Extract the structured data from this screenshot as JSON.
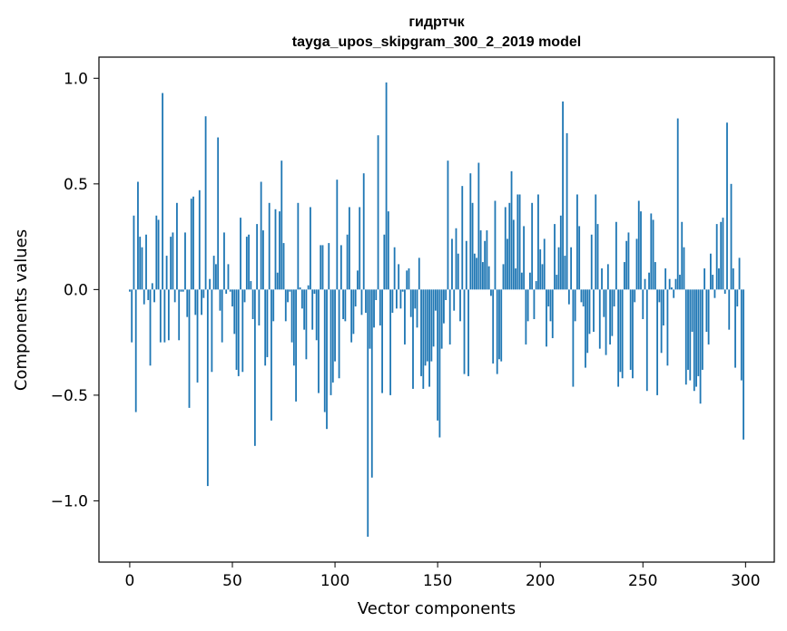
{
  "chart_data": {
    "type": "bar",
    "title": "гидртчк",
    "subtitle": "tayga_upos_skipgram_300_2_2019 model",
    "xlabel": "Vector components",
    "ylabel": "Components values",
    "xlim": [
      -15,
      314
    ],
    "ylim": [
      -1.29,
      1.1
    ],
    "xticks": [
      0,
      50,
      100,
      150,
      200,
      250,
      300
    ],
    "xtick_labels": [
      "0",
      "50",
      "100",
      "150",
      "200",
      "250",
      "300"
    ],
    "yticks": [
      -1.0,
      -0.5,
      0.0,
      0.5,
      1.0
    ],
    "ytick_labels": [
      "−1.0",
      "−0.5",
      "0.0",
      "0.5",
      "1.0"
    ],
    "bar_color": "#1f77b4",
    "grid": false,
    "legend": "none",
    "values": [
      -0.01,
      -0.25,
      0.35,
      -0.58,
      0.51,
      0.25,
      0.2,
      -0.07,
      0.26,
      -0.05,
      -0.36,
      0.03,
      -0.06,
      0.35,
      0.33,
      -0.25,
      0.93,
      -0.25,
      0.16,
      -0.24,
      0.25,
      0.27,
      -0.06,
      0.41,
      -0.24,
      -0.01,
      -0.01,
      0.27,
      -0.13,
      -0.56,
      0.43,
      0.44,
      -0.12,
      -0.44,
      0.47,
      -0.12,
      -0.04,
      0.82,
      -0.93,
      0.05,
      -0.39,
      0.16,
      0.12,
      0.72,
      -0.1,
      -0.25,
      0.27,
      -0.02,
      0.12,
      -0.01,
      -0.08,
      -0.21,
      -0.38,
      -0.41,
      0.34,
      -0.39,
      -0.06,
      0.25,
      0.26,
      0.04,
      -0.14,
      -0.74,
      0.31,
      -0.17,
      0.51,
      0.28,
      -0.36,
      -0.32,
      0.41,
      -0.62,
      -0.15,
      0.38,
      0.08,
      0.37,
      0.61,
      0.22,
      -0.15,
      -0.06,
      -0.01,
      -0.25,
      -0.36,
      -0.53,
      0.41,
      0.01,
      -0.09,
      -0.19,
      -0.33,
      0.02,
      0.39,
      -0.19,
      -0.02,
      -0.24,
      -0.49,
      0.21,
      0.21,
      -0.58,
      -0.66,
      0.22,
      -0.5,
      -0.44,
      -0.34,
      0.52,
      -0.42,
      0.21,
      -0.14,
      -0.15,
      0.26,
      0.39,
      -0.25,
      -0.21,
      -0.08,
      0.09,
      0.39,
      -0.12,
      0.55,
      -0.11,
      -1.17,
      -0.28,
      -0.89,
      -0.18,
      -0.05,
      0.73,
      -0.17,
      -0.49,
      0.26,
      0.98,
      0.37,
      -0.5,
      -0.11,
      0.2,
      -0.09,
      0.12,
      -0.09,
      -0.01,
      -0.26,
      0.09,
      0.1,
      -0.13,
      -0.47,
      -0.09,
      -0.18,
      0.15,
      -0.41,
      -0.47,
      -0.36,
      -0.34,
      -0.46,
      -0.34,
      -0.27,
      -0.1,
      -0.62,
      -0.7,
      -0.28,
      -0.16,
      -0.05,
      0.61,
      -0.26,
      0.24,
      -0.1,
      0.29,
      0.17,
      -0.15,
      0.49,
      -0.4,
      0.23,
      -0.41,
      0.55,
      0.41,
      0.17,
      0.15,
      0.6,
      0.28,
      0.13,
      0.23,
      0.28,
      0.11,
      -0.03,
      -0.35,
      0.42,
      -0.4,
      -0.33,
      -0.34,
      0.12,
      0.39,
      0.24,
      0.41,
      0.56,
      0.33,
      0.1,
      0.45,
      0.45,
      0.08,
      0.3,
      -0.26,
      -0.15,
      0.08,
      0.41,
      -0.14,
      0.04,
      0.45,
      0.19,
      0.12,
      0.24,
      -0.27,
      -0.08,
      -0.15,
      -0.23,
      0.31,
      0.07,
      0.2,
      0.35,
      0.89,
      0.16,
      0.74,
      -0.07,
      0.2,
      -0.46,
      -0.15,
      0.45,
      0.3,
      -0.06,
      -0.08,
      -0.37,
      -0.3,
      -0.21,
      0.26,
      -0.2,
      0.45,
      0.31,
      -0.28,
      0.1,
      -0.13,
      -0.31,
      0.12,
      -0.26,
      -0.22,
      -0.08,
      0.32,
      -0.46,
      -0.39,
      -0.42,
      0.13,
      0.23,
      0.27,
      -0.38,
      -0.42,
      -0.06,
      0.24,
      0.42,
      0.37,
      -0.14,
      0.05,
      -0.48,
      0.08,
      0.36,
      0.33,
      0.13,
      -0.5,
      -0.06,
      -0.3,
      -0.17,
      0.1,
      -0.36,
      0.05,
      0.01,
      -0.04,
      0.05,
      0.81,
      0.07,
      0.32,
      0.2,
      -0.45,
      -0.38,
      -0.43,
      -0.2,
      -0.48,
      -0.46,
      -0.41,
      -0.54,
      -0.38,
      0.1,
      -0.2,
      -0.26,
      0.17,
      0.07,
      -0.04,
      0.31,
      0.1,
      0.32,
      0.34,
      -0.02,
      0.79,
      -0.19,
      0.5,
      0.1,
      -0.37,
      -0.08,
      0.15,
      -0.43,
      -0.71
    ]
  }
}
